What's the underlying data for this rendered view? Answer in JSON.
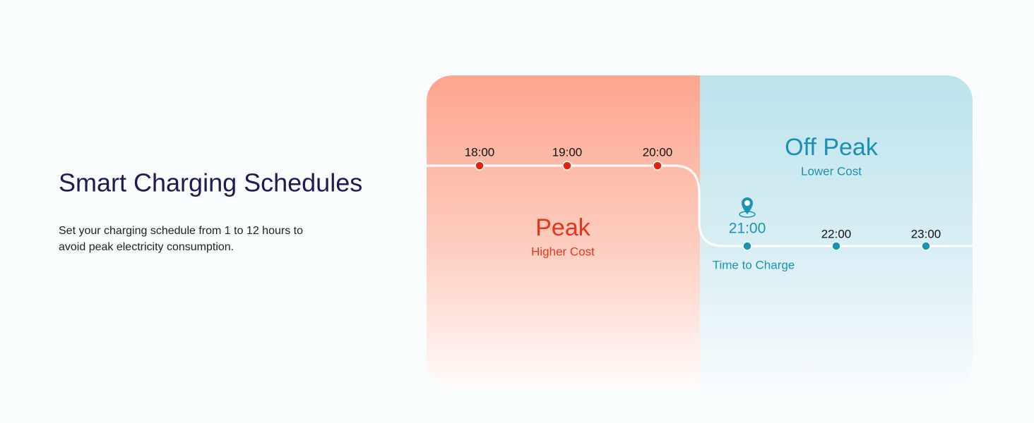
{
  "heading": {
    "title": "Smart Charging Schedules",
    "description": [
      "Set your charging schedule from 1 to 12 hours to",
      "avoid peak electricity consumption."
    ]
  },
  "peak": {
    "title": "Peak",
    "subtitle": "Higher Cost",
    "times": [
      "18:00",
      "19:00",
      "20:00"
    ]
  },
  "off_peak": {
    "title": "Off Peak",
    "subtitle": "Lower Cost",
    "times": [
      "21:00",
      "22:00",
      "23:00"
    ],
    "start_label": "Time to Charge"
  }
}
